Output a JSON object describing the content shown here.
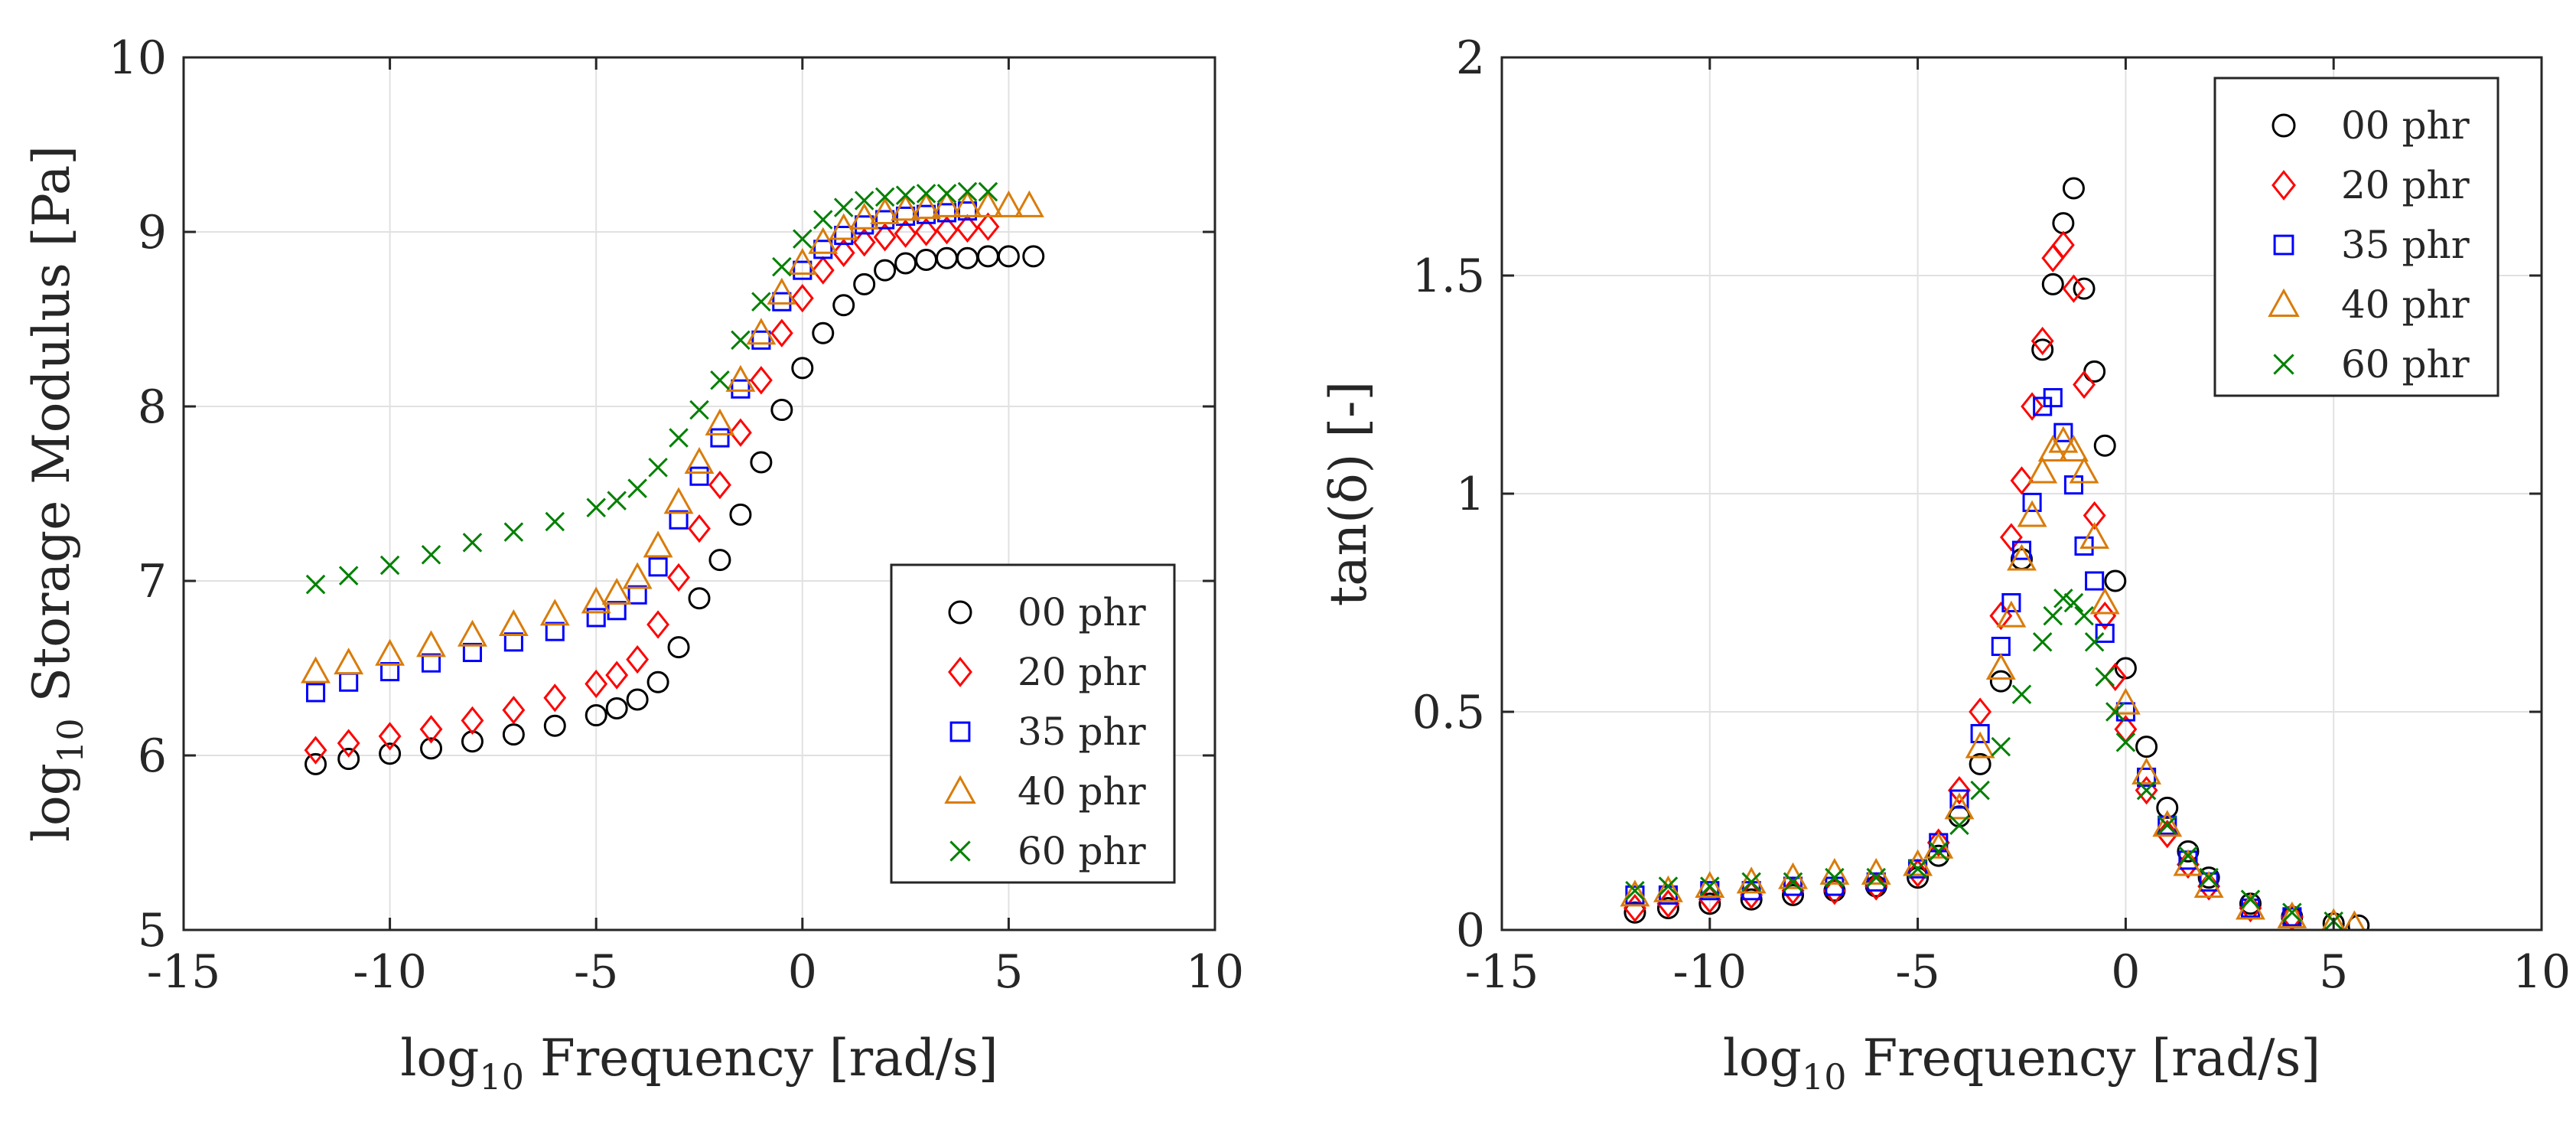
{
  "chart_data": [
    {
      "type": "scatter",
      "title": "",
      "xlabel": "log10 Frequency [rad/s]",
      "xlabel_base": "log",
      "xlabel_sub": "10",
      "xlabel_rest": " Frequency [rad/s]",
      "ylabel": "log10 Storage Modulus [Pa]",
      "ylabel_base": "log",
      "ylabel_sub": "10",
      "ylabel_rest": " Storage Modulus [Pa]",
      "xlim": [
        -15,
        10
      ],
      "ylim": [
        5,
        10
      ],
      "xticks": [
        -15,
        -10,
        -5,
        0,
        5,
        10
      ],
      "xtick_labels": [
        "-15",
        "-10",
        "-5",
        "0",
        "5",
        "10"
      ],
      "yticks": [
        5,
        6,
        7,
        8,
        9,
        10
      ],
      "ytick_labels": [
        "5",
        "6",
        "7",
        "8",
        "9",
        "10"
      ],
      "grid": true,
      "legend_position": "bottom-right",
      "series": [
        {
          "name": "00 phr",
          "marker": "circle",
          "color": "#000000",
          "x": [
            -11.8,
            -11,
            -10,
            -9,
            -8,
            -7,
            -6,
            -5,
            -4.5,
            -4,
            -3.5,
            -3,
            -2.5,
            -2,
            -1.5,
            -1,
            -0.5,
            0,
            0.5,
            1,
            1.5,
            2,
            2.5,
            3,
            3.5,
            4,
            4.5,
            5,
            5.6
          ],
          "values": [
            5.95,
            5.98,
            6.01,
            6.04,
            6.08,
            6.12,
            6.17,
            6.23,
            6.27,
            6.32,
            6.42,
            6.62,
            6.9,
            7.12,
            7.38,
            7.68,
            7.98,
            8.22,
            8.42,
            8.58,
            8.7,
            8.78,
            8.82,
            8.84,
            8.85,
            8.85,
            8.86,
            8.86,
            8.86
          ]
        },
        {
          "name": "20 phr",
          "marker": "diamond",
          "color": "#ff0000",
          "x": [
            -11.8,
            -11,
            -10,
            -9,
            -8,
            -7,
            -6,
            -5,
            -4.5,
            -4,
            -3.5,
            -3,
            -2.5,
            -2,
            -1.5,
            -1,
            -0.5,
            0,
            0.5,
            1,
            1.5,
            2,
            2.5,
            3,
            3.5,
            4,
            4.5
          ],
          "values": [
            6.03,
            6.07,
            6.11,
            6.15,
            6.2,
            6.26,
            6.33,
            6.41,
            6.46,
            6.55,
            6.75,
            7.02,
            7.3,
            7.55,
            7.85,
            8.15,
            8.42,
            8.62,
            8.78,
            8.88,
            8.94,
            8.97,
            8.99,
            9.0,
            9.01,
            9.02,
            9.03
          ]
        },
        {
          "name": "35 phr",
          "marker": "square",
          "color": "#0000ff",
          "x": [
            -11.8,
            -11,
            -10,
            -9,
            -8,
            -7,
            -6,
            -5,
            -4.5,
            -4,
            -3.5,
            -3,
            -2.5,
            -2,
            -1.5,
            -1,
            -0.5,
            0,
            0.5,
            1,
            1.5,
            2,
            2.5,
            3,
            3.5,
            4
          ],
          "values": [
            6.36,
            6.42,
            6.48,
            6.53,
            6.59,
            6.65,
            6.71,
            6.79,
            6.83,
            6.92,
            7.08,
            7.35,
            7.6,
            7.82,
            8.1,
            8.38,
            8.6,
            8.78,
            8.9,
            8.98,
            9.04,
            9.07,
            9.09,
            9.1,
            9.11,
            9.12
          ]
        },
        {
          "name": "40 phr",
          "marker": "triangle",
          "color": "#d97c0a",
          "x": [
            -11.8,
            -11,
            -10,
            -9,
            -8,
            -7,
            -6,
            -5,
            -4.5,
            -4,
            -3.5,
            -3,
            -2.5,
            -2,
            -1.5,
            -1,
            -0.5,
            0,
            0.5,
            1,
            1.5,
            2,
            2.5,
            3,
            3.5,
            4,
            4.5,
            5,
            5.5
          ],
          "values": [
            6.48,
            6.53,
            6.58,
            6.63,
            6.69,
            6.75,
            6.81,
            6.88,
            6.93,
            7.02,
            7.2,
            7.45,
            7.68,
            7.9,
            8.15,
            8.42,
            8.65,
            8.82,
            8.94,
            9.02,
            9.08,
            9.11,
            9.13,
            9.14,
            9.15,
            9.15,
            9.15,
            9.15,
            9.15
          ]
        },
        {
          "name": "60 phr",
          "marker": "cross",
          "color": "#008000",
          "x": [
            -11.8,
            -11,
            -10,
            -9,
            -8,
            -7,
            -6,
            -5,
            -4.5,
            -4,
            -3.5,
            -3,
            -2.5,
            -2,
            -1.5,
            -1,
            -0.5,
            0,
            0.5,
            1,
            1.5,
            2,
            2.5,
            3,
            3.5,
            4,
            4.5
          ],
          "values": [
            6.98,
            7.03,
            7.09,
            7.15,
            7.22,
            7.28,
            7.34,
            7.42,
            7.46,
            7.53,
            7.65,
            7.82,
            7.98,
            8.15,
            8.38,
            8.6,
            8.8,
            8.96,
            9.07,
            9.14,
            9.18,
            9.2,
            9.21,
            9.22,
            9.22,
            9.23,
            9.23
          ]
        }
      ]
    },
    {
      "type": "scatter",
      "title": "",
      "xlabel": "log10 Frequency [rad/s]",
      "xlabel_base": "log",
      "xlabel_sub": "10",
      "xlabel_rest": " Frequency [rad/s]",
      "ylabel": "tan(δ) [-]",
      "xlim": [
        -15,
        10
      ],
      "ylim": [
        0,
        2
      ],
      "xticks": [
        -15,
        -10,
        -5,
        0,
        5,
        10
      ],
      "xtick_labels": [
        "-15",
        "-10",
        "-5",
        "0",
        "5",
        "10"
      ],
      "yticks": [
        0,
        0.5,
        1,
        1.5,
        2
      ],
      "ytick_labels": [
        "0",
        "0.5",
        "1",
        "1.5",
        "2"
      ],
      "grid": true,
      "legend_position": "top-right",
      "series": [
        {
          "name": "00 phr",
          "marker": "circle",
          "color": "#000000",
          "x": [
            -11.8,
            -11,
            -10,
            -9,
            -8,
            -7,
            -6,
            -5,
            -4.5,
            -4,
            -3.5,
            -3,
            -2.5,
            -2,
            -1.75,
            -1.5,
            -1.25,
            -1,
            -0.75,
            -0.5,
            -0.25,
            0,
            0.5,
            1,
            1.5,
            2,
            3,
            4,
            5,
            5.6
          ],
          "values": [
            0.04,
            0.05,
            0.06,
            0.07,
            0.08,
            0.09,
            0.1,
            0.12,
            0.17,
            0.26,
            0.38,
            0.57,
            0.85,
            1.33,
            1.48,
            1.62,
            1.7,
            1.47,
            1.28,
            1.11,
            0.8,
            0.6,
            0.42,
            0.28,
            0.18,
            0.12,
            0.06,
            0.03,
            0.015,
            0.01
          ]
        },
        {
          "name": "20 phr",
          "marker": "diamond",
          "color": "#ff0000",
          "x": [
            -11.8,
            -11,
            -10,
            -9,
            -8,
            -7,
            -6,
            -5,
            -4.5,
            -4,
            -3.5,
            -3,
            -2.75,
            -2.5,
            -2.25,
            -2,
            -1.75,
            -1.5,
            -1.25,
            -1,
            -0.75,
            -0.5,
            -0.25,
            0,
            0.5,
            1,
            1.5,
            2,
            3,
            4
          ],
          "values": [
            0.05,
            0.06,
            0.07,
            0.08,
            0.09,
            0.09,
            0.1,
            0.13,
            0.2,
            0.32,
            0.5,
            0.72,
            0.9,
            1.03,
            1.2,
            1.35,
            1.54,
            1.57,
            1.47,
            1.25,
            0.95,
            0.72,
            0.58,
            0.46,
            0.32,
            0.22,
            0.15,
            0.1,
            0.05,
            0.03
          ]
        },
        {
          "name": "35 phr",
          "marker": "square",
          "color": "#0000ff",
          "x": [
            -11.8,
            -11,
            -10,
            -9,
            -8,
            -7,
            -6,
            -5,
            -4.5,
            -4,
            -3.5,
            -3,
            -2.75,
            -2.5,
            -2.25,
            -2,
            -1.75,
            -1.5,
            -1.25,
            -1,
            -0.75,
            -0.5,
            0,
            0.5,
            1,
            1.5,
            2,
            3,
            4
          ],
          "values": [
            0.08,
            0.08,
            0.09,
            0.09,
            0.1,
            0.1,
            0.11,
            0.14,
            0.2,
            0.3,
            0.45,
            0.65,
            0.75,
            0.87,
            0.98,
            1.2,
            1.22,
            1.14,
            1.02,
            0.88,
            0.8,
            0.68,
            0.5,
            0.35,
            0.24,
            0.16,
            0.11,
            0.05,
            0.03
          ]
        },
        {
          "name": "40 phr",
          "marker": "triangle",
          "color": "#d97c0a",
          "x": [
            -11.8,
            -11,
            -10,
            -9,
            -8,
            -7,
            -6,
            -5,
            -4.5,
            -4,
            -3.5,
            -3,
            -2.75,
            -2.5,
            -2.25,
            -2,
            -1.75,
            -1.5,
            -1.25,
            -1,
            -0.75,
            -0.5,
            0,
            0.5,
            1,
            1.5,
            2,
            3,
            4,
            5,
            5.5
          ],
          "values": [
            0.08,
            0.09,
            0.1,
            0.11,
            0.12,
            0.13,
            0.13,
            0.15,
            0.19,
            0.28,
            0.42,
            0.6,
            0.72,
            0.85,
            0.95,
            1.05,
            1.1,
            1.12,
            1.1,
            1.05,
            0.9,
            0.75,
            0.52,
            0.36,
            0.24,
            0.15,
            0.1,
            0.05,
            0.03,
            0.015,
            0.01
          ]
        },
        {
          "name": "60 phr",
          "marker": "cross",
          "color": "#008000",
          "x": [
            -11.8,
            -11,
            -10,
            -9,
            -8,
            -7,
            -6,
            -5,
            -4.5,
            -4,
            -3.5,
            -3,
            -2.5,
            -2,
            -1.75,
            -1.5,
            -1.25,
            -1,
            -0.75,
            -0.5,
            -0.25,
            0,
            0.5,
            1,
            1.5,
            2,
            3,
            4,
            5
          ],
          "values": [
            0.09,
            0.1,
            0.1,
            0.11,
            0.11,
            0.12,
            0.12,
            0.14,
            0.18,
            0.24,
            0.32,
            0.42,
            0.54,
            0.66,
            0.72,
            0.76,
            0.75,
            0.72,
            0.66,
            0.58,
            0.5,
            0.43,
            0.32,
            0.24,
            0.17,
            0.12,
            0.07,
            0.04,
            0.02
          ]
        }
      ]
    }
  ]
}
